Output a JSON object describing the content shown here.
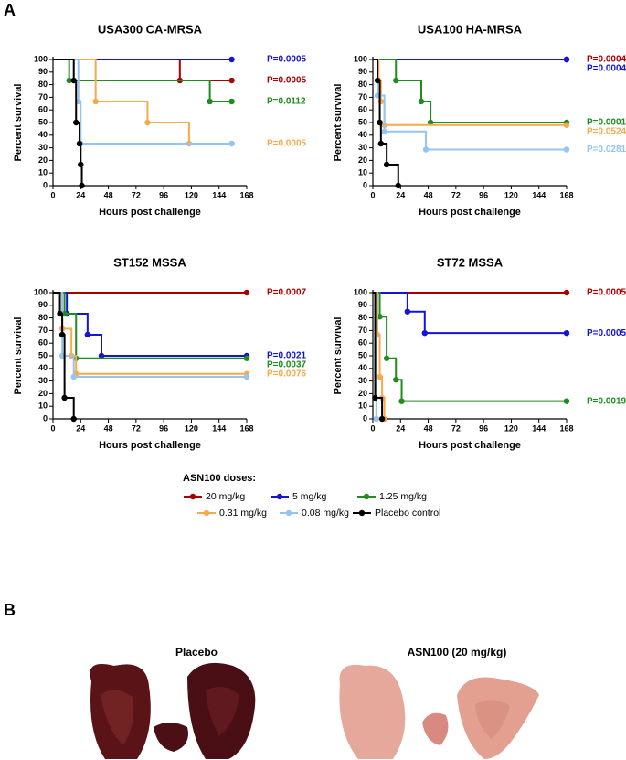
{
  "panels": {
    "a": "A",
    "b": "B"
  },
  "legend": {
    "title": "ASN100 doses:"
  },
  "photos": {
    "placebo": "Placebo",
    "treated": "ASN100 (20 mg/kg)"
  },
  "chart_data": [
    {
      "type": "line",
      "step": true,
      "title": "USA300 CA-MRSA",
      "xlabel": "Hours post challenge",
      "ylabel": "Percent survival",
      "xlim": [
        0,
        168
      ],
      "xticks": [
        0,
        24,
        48,
        72,
        96,
        120,
        144,
        168
      ],
      "ylim": [
        0,
        100
      ],
      "yticks": [
        0,
        10,
        20,
        30,
        40,
        50,
        60,
        70,
        80,
        90,
        100
      ],
      "series": [
        {
          "name": "20 mg/kg",
          "color": "#a80000",
          "x": [
            0,
            110,
            155
          ],
          "values": [
            100,
            83.3,
            83.3
          ],
          "annotation": "P=0.0005"
        },
        {
          "name": "5 mg/kg",
          "color": "#1414d2",
          "x": [
            0,
            155
          ],
          "values": [
            100,
            100
          ],
          "annotation": "P=0.0005"
        },
        {
          "name": "1.25 mg/kg",
          "color": "#1e8c1e",
          "x": [
            0,
            14,
            136,
            155
          ],
          "values": [
            100,
            83.3,
            66.7,
            66.7
          ],
          "annotation": "P=0.0112"
        },
        {
          "name": "0.31 mg/kg",
          "color": "#f7a94c",
          "x": [
            0,
            37,
            82,
            118,
            155
          ],
          "values": [
            100,
            66.7,
            50,
            33.3,
            33.3
          ],
          "annotation": "P=0.0005"
        },
        {
          "name": "0.08 mg/kg",
          "color": "#94c4f2",
          "x": [
            0,
            22,
            24,
            155
          ],
          "values": [
            100,
            66.7,
            33.3,
            33.3
          ]
        },
        {
          "name": "Placebo control",
          "color": "#000000",
          "x": [
            0,
            18,
            20,
            23,
            24,
            25
          ],
          "values": [
            100,
            83.3,
            50,
            33.3,
            16.7,
            0
          ]
        }
      ]
    },
    {
      "type": "line",
      "step": true,
      "title": "USA100 HA-MRSA",
      "xlabel": "Hours post challenge",
      "ylabel": "Percent survival",
      "xlim": [
        0,
        168
      ],
      "xticks": [
        0,
        24,
        48,
        72,
        96,
        120,
        144,
        168
      ],
      "ylim": [
        0,
        100
      ],
      "yticks": [
        0,
        10,
        20,
        30,
        40,
        50,
        60,
        70,
        80,
        90,
        100
      ],
      "series": [
        {
          "name": "20 mg/kg",
          "color": "#a80000",
          "x": [
            0,
            168
          ],
          "values": [
            100,
            100
          ],
          "annotation": "P=0.0004"
        },
        {
          "name": "5 mg/kg",
          "color": "#1414d2",
          "x": [
            0,
            168
          ],
          "values": [
            100,
            100
          ],
          "annotation": "P=0.0004"
        },
        {
          "name": "1.25 mg/kg",
          "color": "#1e8c1e",
          "x": [
            0,
            20,
            42,
            50,
            168
          ],
          "values": [
            100,
            83.3,
            66.7,
            50,
            50
          ],
          "annotation": "P=0.0001"
        },
        {
          "name": "0.31 mg/kg",
          "color": "#f7a94c",
          "x": [
            0,
            5,
            7,
            10,
            168
          ],
          "values": [
            100,
            83.3,
            66.7,
            48,
            48
          ],
          "annotation": "P=0.0524"
        },
        {
          "name": "0.08 mg/kg",
          "color": "#94c4f2",
          "x": [
            0,
            4,
            10,
            46,
            168
          ],
          "values": [
            100,
            71.4,
            42.9,
            28.6,
            28.6
          ],
          "annotation": "P=0.0281"
        },
        {
          "name": "Placebo control",
          "color": "#000000",
          "x": [
            0,
            4,
            6,
            7,
            12,
            22
          ],
          "values": [
            100,
            83.3,
            50,
            33.3,
            16.7,
            0
          ]
        }
      ]
    },
    {
      "type": "line",
      "step": true,
      "title": "ST152 MSSA",
      "xlabel": "Hours post challenge",
      "ylabel": "Percent survival",
      "xlim": [
        0,
        168
      ],
      "xticks": [
        0,
        24,
        48,
        72,
        96,
        120,
        144,
        168
      ],
      "ylim": [
        0,
        100
      ],
      "yticks": [
        0,
        10,
        20,
        30,
        40,
        50,
        60,
        70,
        80,
        90,
        100
      ],
      "series": [
        {
          "name": "20 mg/kg",
          "color": "#a80000",
          "x": [
            0,
            168
          ],
          "values": [
            100,
            100
          ],
          "annotation": "P=0.0007"
        },
        {
          "name": "5 mg/kg",
          "color": "#1414d2",
          "x": [
            0,
            12,
            30,
            42,
            168
          ],
          "values": [
            100,
            83.3,
            66.7,
            50,
            50
          ],
          "annotation": "P=0.0021"
        },
        {
          "name": "1.25 mg/kg",
          "color": "#1e8c1e",
          "x": [
            0,
            10,
            20,
            168
          ],
          "values": [
            100,
            83.3,
            48,
            48
          ],
          "annotation": "P=0.0037"
        },
        {
          "name": "0.31 mg/kg",
          "color": "#f7a94c",
          "x": [
            0,
            8,
            16,
            20,
            168
          ],
          "values": [
            100,
            71.4,
            50,
            35.7,
            35.7
          ],
          "annotation": "P=0.0076"
        },
        {
          "name": "0.08 mg/kg",
          "color": "#94c4f2",
          "x": [
            0,
            8,
            18,
            168
          ],
          "values": [
            100,
            50,
            33.3,
            33.3
          ]
        },
        {
          "name": "Placebo control",
          "color": "#000000",
          "x": [
            0,
            6,
            8,
            10,
            18
          ],
          "values": [
            100,
            83.3,
            66.7,
            16.7,
            0
          ]
        }
      ]
    },
    {
      "type": "line",
      "step": true,
      "title": "ST72 MSSA",
      "xlabel": "Hours post challenge",
      "ylabel": "Percent survival",
      "xlim": [
        0,
        168
      ],
      "xticks": [
        0,
        24,
        48,
        72,
        96,
        120,
        144,
        168
      ],
      "ylim": [
        0,
        100
      ],
      "yticks": [
        0,
        10,
        20,
        30,
        40,
        50,
        60,
        70,
        80,
        90,
        100
      ],
      "series": [
        {
          "name": "20 mg/kg",
          "color": "#a80000",
          "x": [
            0,
            168
          ],
          "values": [
            100,
            100
          ],
          "annotation": "P=0.0005"
        },
        {
          "name": "5 mg/kg",
          "color": "#1414d2",
          "x": [
            0,
            30,
            45,
            168
          ],
          "values": [
            100,
            85,
            68,
            68
          ],
          "annotation": "P=0.0005"
        },
        {
          "name": "1.25 mg/kg",
          "color": "#1e8c1e",
          "x": [
            0,
            6,
            12,
            20,
            25,
            168
          ],
          "values": [
            100,
            81,
            48,
            31,
            14,
            14
          ],
          "annotation": "P=0.0019"
        },
        {
          "name": "0.31 mg/kg",
          "color": "#f7a94c",
          "x": [
            0,
            4,
            6,
            8,
            10
          ],
          "values": [
            100,
            66.7,
            33.3,
            16.7,
            0
          ]
        },
        {
          "name": "0.08 mg/kg",
          "color": "#94c4f2",
          "x": [
            0,
            3
          ],
          "values": [
            100,
            0
          ]
        },
        {
          "name": "Placebo control",
          "color": "#000000",
          "x": [
            0,
            2,
            8
          ],
          "values": [
            100,
            16.7,
            0
          ]
        }
      ]
    }
  ]
}
